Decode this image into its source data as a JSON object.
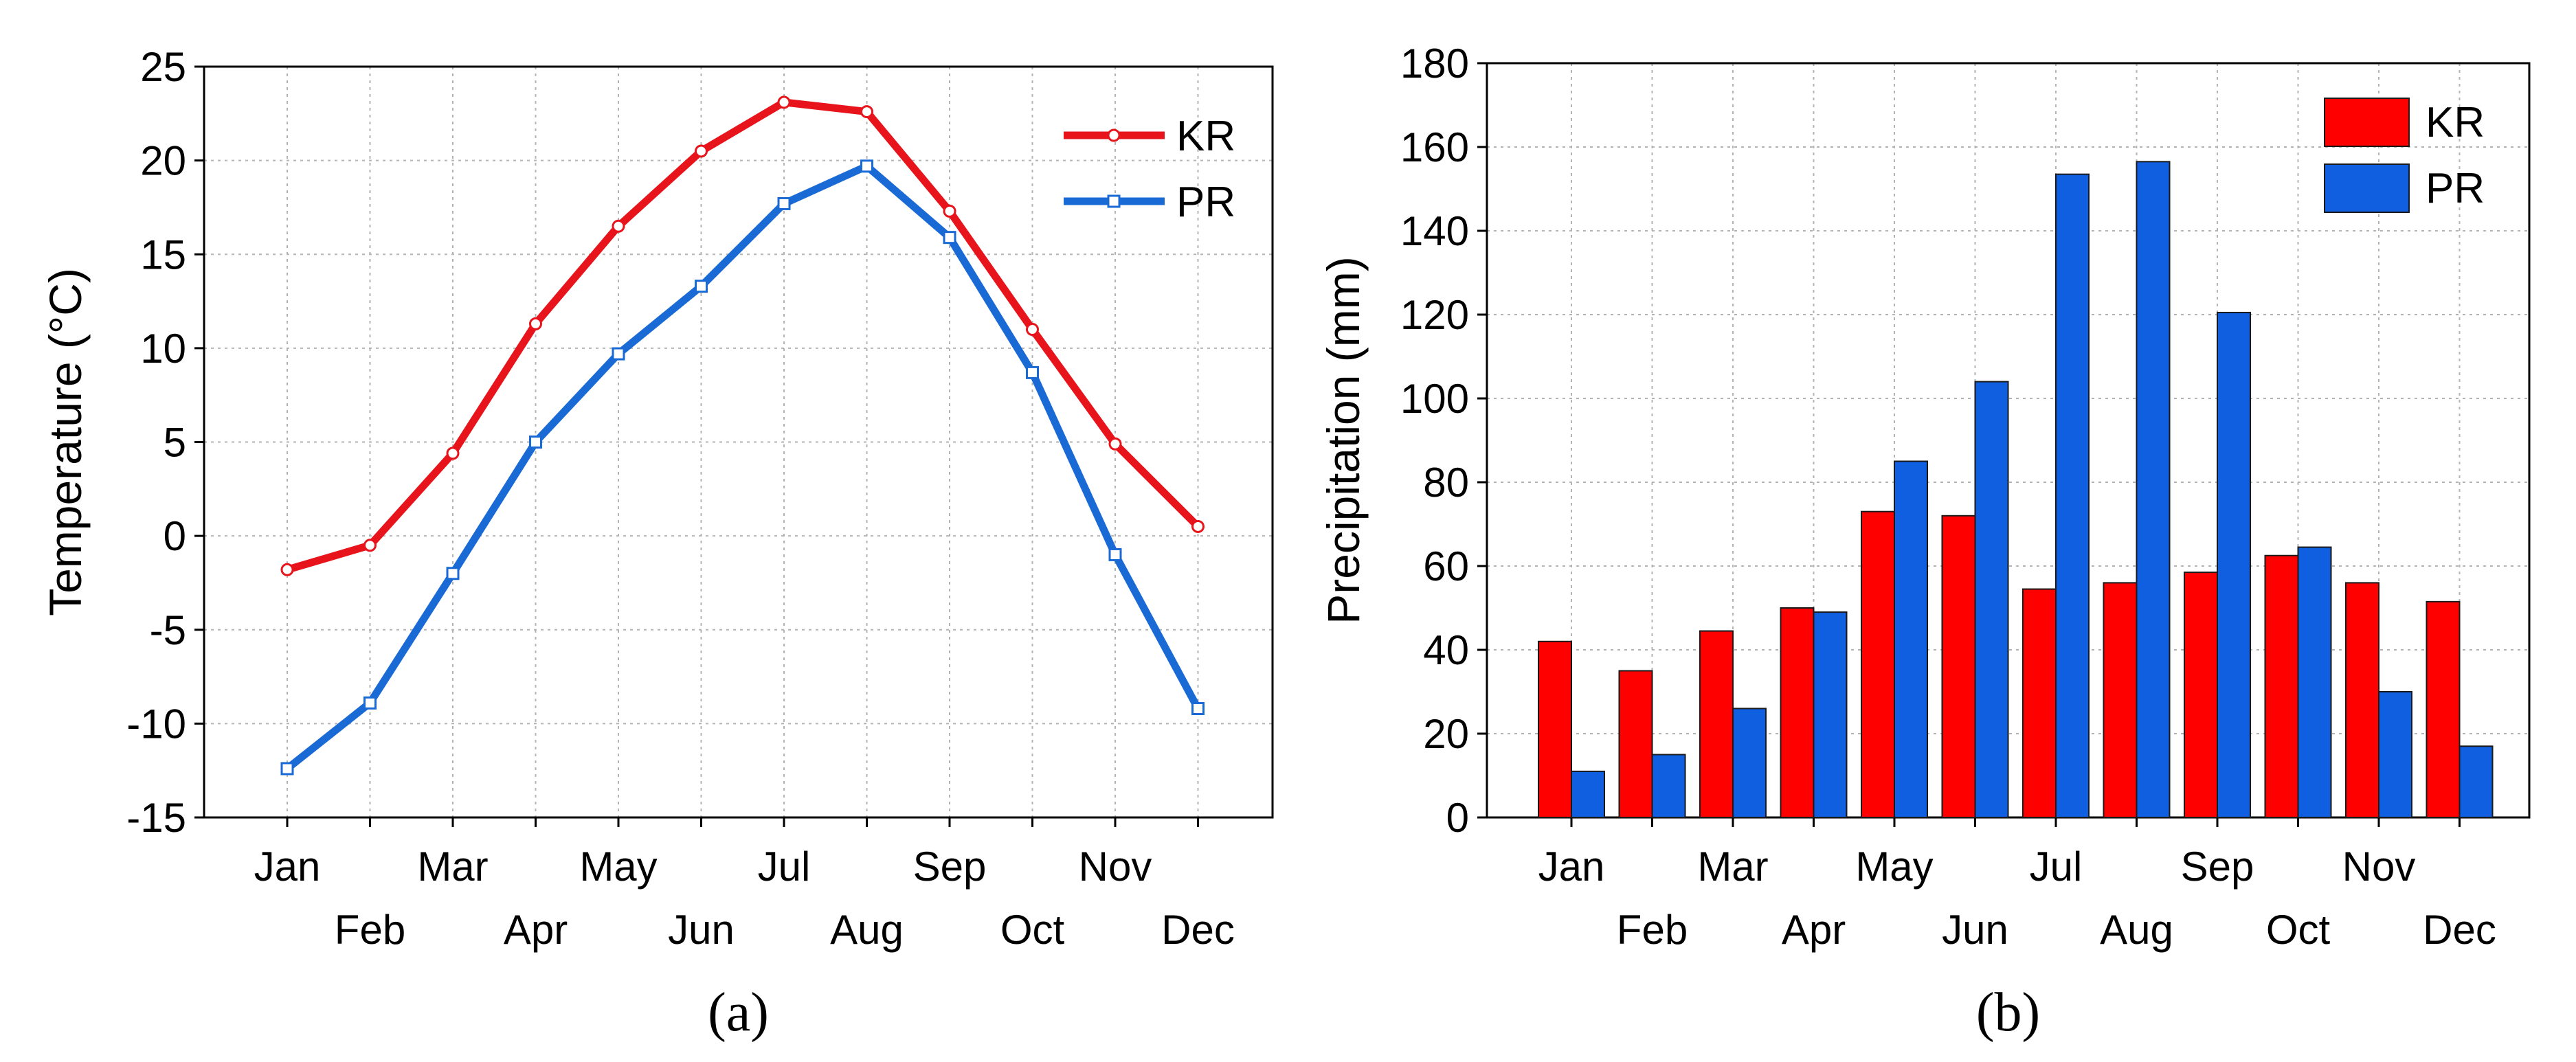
{
  "chart_data": [
    {
      "type": "line",
      "panel_label": "(a)",
      "categories": [
        "Jan",
        "Feb",
        "Mar",
        "Apr",
        "May",
        "Jun",
        "Jul",
        "Aug",
        "Sep",
        "Oct",
        "Nov",
        "Dec"
      ],
      "series": [
        {
          "name": "KR",
          "color": "#e8141c",
          "marker": "circle",
          "values": [
            -1.8,
            -0.5,
            4.4,
            11.3,
            16.5,
            20.5,
            23.1,
            22.6,
            17.3,
            11.0,
            4.9,
            0.5
          ]
        },
        {
          "name": "PR",
          "color": "#1a6ad6",
          "marker": "square",
          "values": [
            -12.4,
            -8.9,
            -2.0,
            5.0,
            9.7,
            13.3,
            17.7,
            19.7,
            15.9,
            8.7,
            -1.0,
            -9.2
          ]
        }
      ],
      "title": "",
      "xlabel": "",
      "ylabel": "Temperature (°C)",
      "ylim": [
        -15,
        25
      ],
      "yticks": [
        "-15",
        "-10",
        "-5",
        "0",
        "5",
        "10",
        "15",
        "20",
        "25"
      ],
      "grid": true,
      "legend_position": "top-right"
    },
    {
      "type": "bar",
      "panel_label": "(b)",
      "categories": [
        "Jan",
        "Feb",
        "Mar",
        "Apr",
        "May",
        "Jun",
        "Jul",
        "Aug",
        "Sep",
        "Oct",
        "Nov",
        "Dec"
      ],
      "series": [
        {
          "name": "KR",
          "color": "#ff0000",
          "values": [
            42,
            35,
            44.5,
            50,
            73,
            72,
            54.5,
            56,
            58.5,
            62.5,
            56,
            51.5
          ]
        },
        {
          "name": "PR",
          "color": "#0f5fe0",
          "values": [
            11,
            15,
            26,
            49,
            85,
            104,
            153.5,
            156.5,
            120.5,
            64.5,
            30,
            17
          ]
        }
      ],
      "title": "",
      "xlabel": "",
      "ylabel": "Precipitation (mm)",
      "ylim": [
        0,
        180
      ],
      "yticks": [
        "0",
        "20",
        "40",
        "60",
        "80",
        "100",
        "120",
        "140",
        "160",
        "180"
      ],
      "grid": true,
      "legend_position": "top-right"
    }
  ]
}
